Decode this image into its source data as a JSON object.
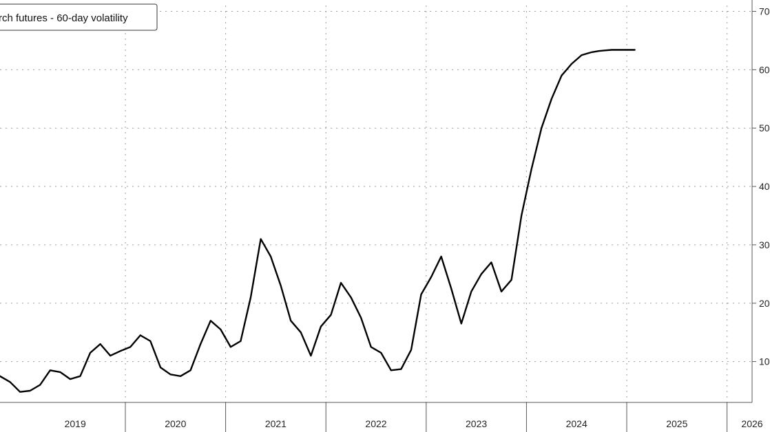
{
  "chart_data": {
    "type": "line",
    "title": "",
    "xlabel": "",
    "ylabel": "",
    "legend": {
      "text": "rch futures - 60-day volatility",
      "placement": "top-left"
    },
    "grid": true,
    "x_axis": {
      "ticks": [
        "2019",
        "2020",
        "2021",
        "2022",
        "2023",
        "2024",
        "2025",
        "2026"
      ],
      "xlim": [
        2018.75,
        2026.25
      ]
    },
    "y_axis": {
      "ticks": [
        "10",
        "20",
        "30",
        "40",
        "50",
        "60",
        "70"
      ],
      "ylim": [
        3,
        71
      ],
      "side": "right"
    },
    "series": [
      {
        "x": [
          2018.75,
          2018.85,
          2018.95,
          2019.05,
          2019.15,
          2019.25,
          2019.35,
          2019.45,
          2019.55,
          2019.65,
          2019.75,
          2019.85,
          2019.95,
          2020.05,
          2020.15,
          2020.25,
          2020.35,
          2020.45,
          2020.55,
          2020.65,
          2020.75,
          2020.85,
          2020.95,
          2021.05,
          2021.15,
          2021.25,
          2021.35,
          2021.45,
          2021.55,
          2021.65,
          2021.75,
          2021.85,
          2021.95,
          2022.05,
          2022.15,
          2022.25,
          2022.35,
          2022.45,
          2022.55,
          2022.65,
          2022.75,
          2022.85,
          2022.95,
          2023.05,
          2023.15,
          2023.25,
          2023.35,
          2023.45,
          2023.55,
          2023.65,
          2023.75,
          2023.85,
          2023.95,
          2024.05,
          2024.15,
          2024.25,
          2024.35,
          2024.45,
          2024.55,
          2024.65,
          2024.72,
          2024.78,
          2024.85,
          2024.92,
          2025.0,
          2025.05,
          2025.08
        ],
        "values": [
          7.5,
          6.5,
          4.8,
          5.0,
          6.0,
          8.5,
          8.2,
          7.0,
          7.5,
          11.5,
          13.0,
          11.0,
          11.8,
          12.5,
          14.5,
          13.5,
          9.0,
          7.8,
          7.5,
          8.5,
          13.0,
          17.0,
          15.5,
          12.5,
          13.5,
          21.0,
          31.0,
          28.0,
          23.0,
          17.0,
          15.0,
          11.0,
          16.0,
          18.0,
          23.5,
          21.0,
          17.5,
          12.5,
          11.5,
          8.5,
          8.7,
          12.0,
          21.5,
          24.5,
          28.0,
          22.5,
          16.5,
          22.0,
          25.0,
          27.0,
          22.0,
          24.0,
          35.0,
          43.0,
          50.0,
          55.0,
          59.0,
          61.0,
          62.5,
          63.0,
          63.2,
          63.3,
          63.4,
          63.4,
          63.4,
          63.4,
          63.4
        ]
      }
    ]
  }
}
